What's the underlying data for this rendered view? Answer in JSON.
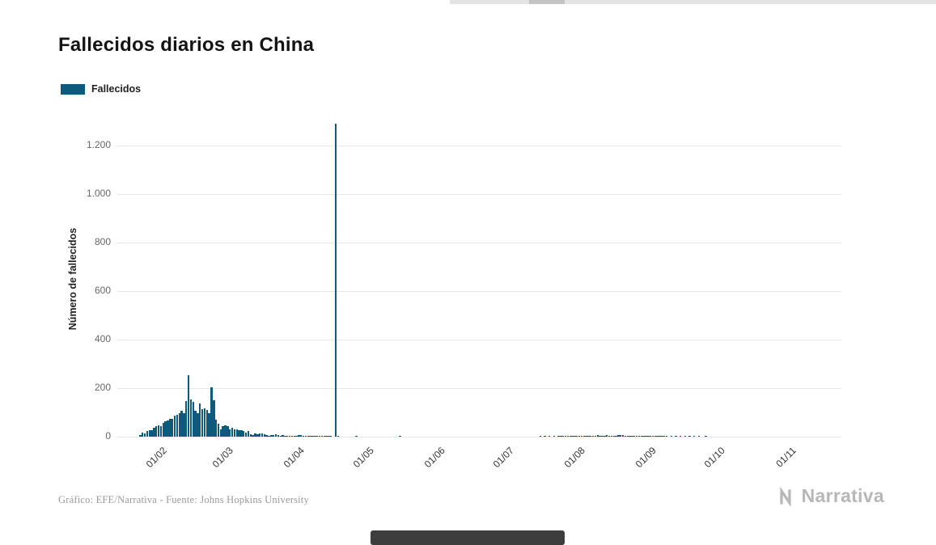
{
  "page": {
    "title": "Fallecidos diarios en China",
    "credit": "Gráfico: EFE/Narrativa - Fuente: Johns Hopkins University",
    "logo_text": "Narrativa"
  },
  "legend": {
    "label": "Fallecidos"
  },
  "theme": {
    "bar_color": "#0e5a7d",
    "grid_color": "#e6e6e6"
  },
  "chart_data": {
    "type": "bar",
    "title": "Fallecidos diarios en China",
    "series_name": "Fallecidos",
    "xlabel": "",
    "ylabel": "Número de fallecidos",
    "ylim": [
      0,
      1300
    ],
    "grid": "horizontal",
    "legend_position": "top-left",
    "x_domain": [
      "2020-01-13",
      "2020-11-23"
    ],
    "yticks": [
      {
        "label": "0",
        "value": 0
      },
      {
        "label": "200",
        "value": 200
      },
      {
        "label": "400",
        "value": 400
      },
      {
        "label": "600",
        "value": 600
      },
      {
        "label": "800",
        "value": 800
      },
      {
        "label": "1.000",
        "value": 1000
      },
      {
        "label": "1.200",
        "value": 1200
      }
    ],
    "xticks": [
      {
        "label": "01/02",
        "date": "2020-02-01"
      },
      {
        "label": "01/03",
        "date": "2020-03-01"
      },
      {
        "label": "01/04",
        "date": "2020-04-01"
      },
      {
        "label": "01/05",
        "date": "2020-05-01"
      },
      {
        "label": "01/06",
        "date": "2020-06-01"
      },
      {
        "label": "01/07",
        "date": "2020-07-01"
      },
      {
        "label": "01/08",
        "date": "2020-08-01"
      },
      {
        "label": "01/09",
        "date": "2020-09-01"
      },
      {
        "label": "01/10",
        "date": "2020-10-01"
      },
      {
        "label": "01/11",
        "date": "2020-11-01"
      }
    ],
    "points": [
      [
        "2020-01-23",
        8
      ],
      [
        "2020-01-24",
        16
      ],
      [
        "2020-01-25",
        15
      ],
      [
        "2020-01-26",
        24
      ],
      [
        "2020-01-27",
        26
      ],
      [
        "2020-01-28",
        26
      ],
      [
        "2020-01-29",
        38
      ],
      [
        "2020-01-30",
        43
      ],
      [
        "2020-01-31",
        46
      ],
      [
        "2020-02-01",
        45
      ],
      [
        "2020-02-02",
        58
      ],
      [
        "2020-02-03",
        64
      ],
      [
        "2020-02-04",
        66
      ],
      [
        "2020-02-05",
        73
      ],
      [
        "2020-02-06",
        73
      ],
      [
        "2020-02-07",
        86
      ],
      [
        "2020-02-08",
        89
      ],
      [
        "2020-02-09",
        97
      ],
      [
        "2020-02-10",
        108
      ],
      [
        "2020-02-11",
        97
      ],
      [
        "2020-02-12",
        146
      ],
      [
        "2020-02-13",
        254
      ],
      [
        "2020-02-14",
        153
      ],
      [
        "2020-02-15",
        143
      ],
      [
        "2020-02-16",
        106
      ],
      [
        "2020-02-17",
        98
      ],
      [
        "2020-02-18",
        136
      ],
      [
        "2020-02-19",
        115
      ],
      [
        "2020-02-20",
        118
      ],
      [
        "2020-02-21",
        109
      ],
      [
        "2020-02-22",
        97
      ],
      [
        "2020-02-23",
        205
      ],
      [
        "2020-02-24",
        150
      ],
      [
        "2020-02-25",
        71
      ],
      [
        "2020-02-26",
        52
      ],
      [
        "2020-02-27",
        29
      ],
      [
        "2020-02-28",
        44
      ],
      [
        "2020-02-29",
        47
      ],
      [
        "2020-03-01",
        42
      ],
      [
        "2020-03-02",
        31
      ],
      [
        "2020-03-03",
        38
      ],
      [
        "2020-03-04",
        31
      ],
      [
        "2020-03-05",
        30
      ],
      [
        "2020-03-06",
        28
      ],
      [
        "2020-03-07",
        27
      ],
      [
        "2020-03-08",
        22
      ],
      [
        "2020-03-09",
        17
      ],
      [
        "2020-03-10",
        22
      ],
      [
        "2020-03-11",
        11
      ],
      [
        "2020-03-12",
        7
      ],
      [
        "2020-03-13",
        13
      ],
      [
        "2020-03-14",
        10
      ],
      [
        "2020-03-15",
        14
      ],
      [
        "2020-03-16",
        13
      ],
      [
        "2020-03-17",
        11
      ],
      [
        "2020-03-18",
        8
      ],
      [
        "2020-03-19",
        3
      ],
      [
        "2020-03-20",
        7
      ],
      [
        "2020-03-21",
        6
      ],
      [
        "2020-03-22",
        9
      ],
      [
        "2020-03-23",
        7
      ],
      [
        "2020-03-24",
        4
      ],
      [
        "2020-03-25",
        6
      ],
      [
        "2020-03-26",
        5
      ],
      [
        "2020-03-27",
        3
      ],
      [
        "2020-03-28",
        5
      ],
      [
        "2020-03-29",
        5
      ],
      [
        "2020-03-30",
        1
      ],
      [
        "2020-03-31",
        1
      ],
      [
        "2020-04-01",
        7
      ],
      [
        "2020-04-02",
        6
      ],
      [
        "2020-04-03",
        4
      ],
      [
        "2020-04-04",
        3
      ],
      [
        "2020-04-05",
        1
      ],
      [
        "2020-04-06",
        2
      ],
      [
        "2020-04-07",
        1
      ],
      [
        "2020-04-08",
        2
      ],
      [
        "2020-04-09",
        1
      ],
      [
        "2020-04-10",
        1
      ],
      [
        "2020-04-11",
        2
      ],
      [
        "2020-04-12",
        1
      ],
      [
        "2020-04-13",
        1
      ],
      [
        "2020-04-14",
        1
      ],
      [
        "2020-04-15",
        1
      ],
      [
        "2020-04-17",
        1290
      ],
      [
        "2020-04-18",
        1
      ],
      [
        "2020-04-26",
        1
      ],
      [
        "2020-05-15",
        1
      ],
      [
        "2020-07-15",
        1
      ],
      [
        "2020-07-17",
        1
      ],
      [
        "2020-07-19",
        2
      ],
      [
        "2020-07-21",
        1
      ],
      [
        "2020-07-23",
        2
      ],
      [
        "2020-07-24",
        2
      ],
      [
        "2020-07-25",
        3
      ],
      [
        "2020-07-26",
        2
      ],
      [
        "2020-07-27",
        2
      ],
      [
        "2020-07-28",
        3
      ],
      [
        "2020-07-29",
        4
      ],
      [
        "2020-07-30",
        5
      ],
      [
        "2020-07-31",
        3
      ],
      [
        "2020-08-01",
        4
      ],
      [
        "2020-08-02",
        3
      ],
      [
        "2020-08-03",
        4
      ],
      [
        "2020-08-04",
        3
      ],
      [
        "2020-08-05",
        5
      ],
      [
        "2020-08-06",
        3
      ],
      [
        "2020-08-07",
        4
      ],
      [
        "2020-08-08",
        5
      ],
      [
        "2020-08-09",
        6
      ],
      [
        "2020-08-10",
        4
      ],
      [
        "2020-08-11",
        5
      ],
      [
        "2020-08-12",
        4
      ],
      [
        "2020-08-13",
        6
      ],
      [
        "2020-08-14",
        5
      ],
      [
        "2020-08-15",
        4
      ],
      [
        "2020-08-16",
        5
      ],
      [
        "2020-08-17",
        5
      ],
      [
        "2020-08-18",
        7
      ],
      [
        "2020-08-19",
        8
      ],
      [
        "2020-08-20",
        6
      ],
      [
        "2020-08-21",
        5
      ],
      [
        "2020-08-22",
        5
      ],
      [
        "2020-08-23",
        4
      ],
      [
        "2020-08-24",
        4
      ],
      [
        "2020-08-25",
        5
      ],
      [
        "2020-08-26",
        3
      ],
      [
        "2020-08-27",
        3
      ],
      [
        "2020-08-28",
        2
      ],
      [
        "2020-08-29",
        3
      ],
      [
        "2020-08-30",
        2
      ],
      [
        "2020-08-31",
        3
      ],
      [
        "2020-09-01",
        2
      ],
      [
        "2020-09-02",
        3
      ],
      [
        "2020-09-03",
        2
      ],
      [
        "2020-09-04",
        1
      ],
      [
        "2020-09-05",
        2
      ],
      [
        "2020-09-06",
        1
      ],
      [
        "2020-09-07",
        1
      ],
      [
        "2020-09-08",
        2
      ],
      [
        "2020-09-10",
        1
      ],
      [
        "2020-09-12",
        1
      ],
      [
        "2020-09-14",
        1
      ],
      [
        "2020-09-16",
        1
      ],
      [
        "2020-09-18",
        1
      ],
      [
        "2020-09-20",
        1
      ],
      [
        "2020-09-22",
        1
      ],
      [
        "2020-09-25",
        1
      ]
    ]
  }
}
